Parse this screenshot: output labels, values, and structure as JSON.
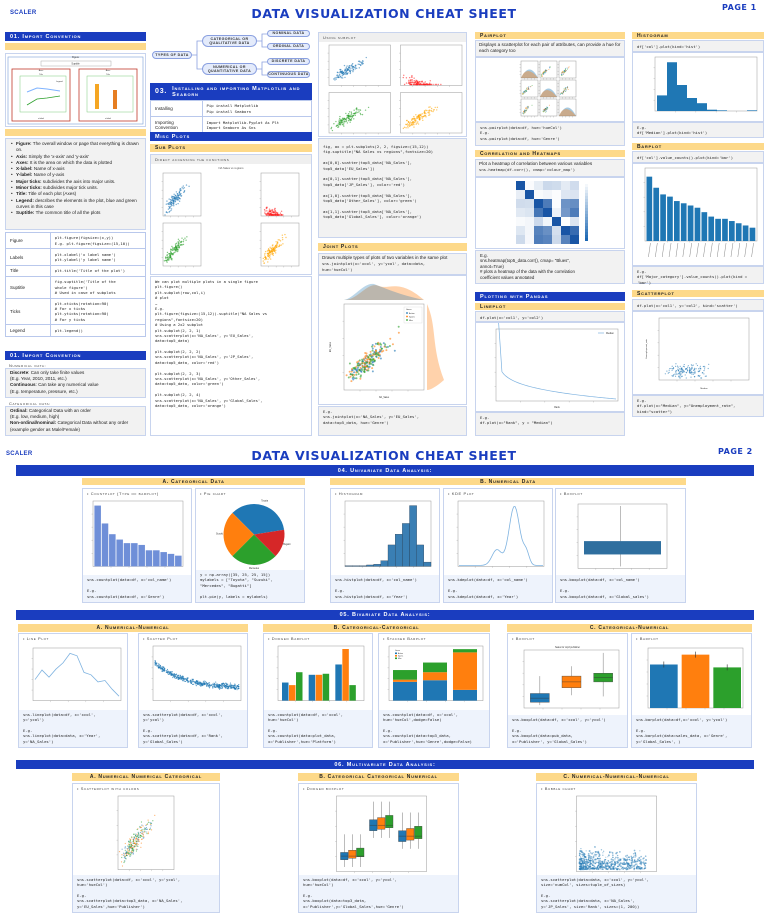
{
  "colors": {
    "brand_blue": "#1a3dbf",
    "section_yellow": "#fdd98a",
    "c_blue": "#1f77b4",
    "c_orange": "#ff7f0e",
    "c_green": "#2ca02c",
    "c_red": "#d62728"
  },
  "page1": {
    "logo": "SCALER",
    "title": "DATA VISUALIZATION CHEAT SHEET",
    "page": "PAGE 1",
    "import_heading": "01. Import Convention",
    "anatomy": {
      "figure": "Figure",
      "suptitle": "Suptitle",
      "axes": "Axes",
      "title": "Title",
      "legend": "Legend",
      "xlabel": "x-label",
      "ylabel": "y-label"
    },
    "bullets": [
      {
        "k": "Figure:",
        "v": " The overall window or page that everything is drawn on."
      },
      {
        "k": "Axis:",
        "v": " Simply the 'x-axis' and 'y-axis'"
      },
      {
        "k": "Axes:",
        "v": " It is the area on which the data is plotted"
      },
      {
        "k": "X-label:",
        "v": " Name of x-axis"
      },
      {
        "k": "Y-label:",
        "v": " Name of y-axis"
      },
      {
        "k": "Major ticks:",
        "v": " subdivides the axis into major units."
      },
      {
        "k": "Minor ticks:",
        "v": " subdivides major tick units."
      },
      {
        "k": "Title:",
        "v": " Title of each plot (Axes)"
      },
      {
        "k": "Legend:",
        "v": " describes the elements in the plot, blue and green curves in this case"
      },
      {
        "k": "Suptitle:",
        "v": " The common title of all the plots"
      }
    ],
    "table": [
      {
        "label": "Figure",
        "code": [
          "plt.figure(figsize=(x,y))",
          "E.g. plt.figure(figsize=(15,10))"
        ]
      },
      {
        "label": "Labels",
        "code": [
          "plt.xlabel('x label name')",
          "plt.ylabel('y label name')"
        ]
      },
      {
        "label": "Title",
        "code": [
          "plt.title('Title of the plot')"
        ]
      },
      {
        "label": "Suptitle",
        "code": [
          "fig.suptitle('Title of the",
          "whole figure')",
          "# Used in case of subplots"
        ]
      },
      {
        "label": "Ticks",
        "code": [
          "plt.xticks(rotation=90)",
          "# For x ticks",
          "plt.yticks(rotation=90)",
          "# For y ticks"
        ]
      },
      {
        "label": "Legend",
        "code": [
          "plt.legend()"
        ]
      }
    ],
    "data_heading": "01. Import Convention",
    "numerical_label": "Numerical data:",
    "numerical": [
      {
        "k": "Discrete",
        "v": ": Can only take finite values"
      },
      {
        "k": "",
        "v": "(E.g. Year, 2010, 2011, etc.)"
      },
      {
        "k": "Continuous",
        "v": ": Can take any numerical value"
      },
      {
        "k": "",
        "v": "(E.g. temperature, pressure, etc.)"
      }
    ],
    "categorical_label": "Categorical data:",
    "categorical": [
      {
        "k": "Ordinal:",
        "v": " Categorical Data with an order"
      },
      {
        "k": "",
        "v": "(E.g. low, medium, high)"
      },
      {
        "k": "Non-ordinal/nominal:",
        "v": " Categorical Data without any order (example gender as Male/Female)"
      }
    ],
    "types": {
      "root": "Types of Data",
      "cat": "Categorical or Qualitative Data",
      "num": "Numerical or Quantitative Data",
      "nominal": "Nominal Data",
      "ordinal": "Ordinal Data",
      "discrete": "Discrete Data",
      "continuous": "Continuous Data"
    },
    "install": {
      "heading_num": "03.",
      "heading": "Installing and importing Matplotlib and Seaborn",
      "rows": [
        {
          "label": "Installing",
          "code": [
            "Pip install Matplotlib",
            "Pip install Seaborn"
          ]
        },
        {
          "label": "Importing Convention",
          "code": [
            "Import Matplotlib.Pyplot As Plt",
            "Import Seaborn As Sns"
          ]
        }
      ]
    },
    "misc_heading": "Misc Plots",
    "subplots_heading": "Sub Plots",
    "direct_label": "Direct accessing the functions",
    "direct_plot_title": "NA Sales vs regions",
    "direct_code": [
      "We can plot multiple plots in a single figure",
      "plt.figure()",
      "plt.subplot(row,col,i)",
      "# plot",
      "…",
      "E.g.",
      "plt.figure(figsize=(15,12)).suptitle(\"NA Sales vs",
      "regions\",fontsize=20)",
      "# Using a 2x2 subplot",
      "plt.subplot(2, 2, 1)",
      "sns.scatterplot(x='NA_Sales', y='EU_Sales',",
      "data=top5_data)",
      "",
      "plt.subplot(2, 2, 2)",
      "sns.scatterplot(x='NA_Sales', y='JP_Sales',",
      "data=top5_data, color='red')",
      "",
      "plt.subplot(2, 2, 3)",
      "sns.scatterplot(x='NA_Sales', y='Other_Sales',",
      "data=top5_data, color='green')",
      "",
      "plt.subplot(2, 2, 4)",
      "sns.scatterplot(x='NA_Sales', y='Global_Sales',",
      "data=top5_data, color='orange')"
    ],
    "axes_label": "Using subplot",
    "axes_code": [
      "fig, ax = plt.subplots(2, 2, figsize=(15,12))",
      "fig.suptitle(\"NA Sales vs regions\",fontsize=20)",
      "",
      "ax[0,0].scatter(top5_data['NA_Sales'],",
      "top5_data['EU_Sales'])",
      "",
      "ax[0,1].scatter(top5_data['NA_Sales'],",
      "top5_data['JP_Sales'], color='red')",
      "",
      "ax[1,0].scatter(top5_data['NA_Sales'],",
      "top5_data['Other_Sales'], color='green')",
      "",
      "ax[1,1].scatter(top5_data['NA_Sales'],",
      "top5_data['Global_Sales'], color='orange')"
    ],
    "joint": {
      "heading": "Joint Plots",
      "desc": "Draws multiple types of plots of two variables in the same plot",
      "code": [
        "sns.jointplot(x='xcol', y='ycol', data=data,",
        "hue='hueCol')"
      ],
      "legend_title": "Genre",
      "legend": [
        "Action",
        "Sports",
        "Misc"
      ],
      "xlabel": "NA_Sales",
      "ylabel": "EU_Sales",
      "eg": [
        "E.g.",
        "sns.jointplot(x='NA_Sales', y='EU_Sales',",
        "data=top5_data, hue='Genre')"
      ]
    },
    "pairplot": {
      "heading": "Pairplot",
      "desc": "Displays a scatterplot for each pair of attributes, can provide a hue for each category too",
      "code": [
        "sns.pairplot(data=df, hue='hueCol')",
        "E.g.",
        "sns.pairplot(data=df, hue='Genre')"
      ]
    },
    "heatmap": {
      "heading": "Correlation and Heatmaps",
      "desc": "Plot a heatmap of correlation between various variables",
      "code": [
        "sns.heatmap(df.corr(), cmap='colour_map')"
      ],
      "eg": [
        "E.g.",
        "sns.heatmap(top5_data.corr(), cmap= \"Blues\",",
        "annot=True)",
        "# plots a heatmap of the data with the correlation",
        "coefficient values annotated"
      ]
    },
    "pandas_heading": "Plotting with Pandas",
    "lineplot": {
      "heading": "Lineplot",
      "code": [
        "df.plot(x='col1', y='col2')"
      ],
      "legend": "Median",
      "xlabel": "Rank",
      "eg": [
        "E.g.",
        "df.plot(x=\"Rank\", y = \"Median\")"
      ]
    },
    "histogram": {
      "heading": "Histogram",
      "code": [
        "df['col'].plot(kind='hist')"
      ],
      "eg": [
        "E.g.",
        "df['Median'].plot(kind='hist')"
      ]
    },
    "barplot": {
      "heading": "Barplot",
      "code": [
        "df['col'].value_counts().plot(kind='bar')"
      ],
      "eg": [
        "E.g.",
        "df['Major_category'].value_counts().plot(kind = 'bar')"
      ]
    },
    "scatterplot": {
      "heading": "Scatterplot",
      "code": [
        "df.plot(x='col1', y='col2', kind='scatter')"
      ],
      "xlabel": "Median",
      "ylabel": "Unemployment_rate",
      "eg": [
        "E.g.",
        "df.plot(x=\"Median\", y=\"Unemployment_rate\",",
        "kind=\"scatter\")"
      ]
    }
  },
  "page2": {
    "logo": "SCALER",
    "title": "DATA VISUALIZATION CHEAT SHEET",
    "page": "PAGE 2",
    "univariate": {
      "heading": "04. Univariate Data Analysis:",
      "a": "A. Categorical Data",
      "b": "B. Numerical Data",
      "countplot": {
        "label": "Countplot (Type of barplot)",
        "code": [
          "sns.countplot(data=df, x='col_name')",
          "",
          "E.g.",
          "sns.countplot(data=df, x='Genre')"
        ]
      },
      "pie": {
        "label": "Pie chart",
        "slices": [
          "Toyota",
          "Suzuki",
          "Mercedes",
          "Bugatti"
        ],
        "values": [
          35,
          25,
          25,
          15
        ],
        "code": [
          "y = np.array([35, 25, 25, 15])",
          "mylabels = [\"Toyota\", \"Suzuki\",",
          "\"Mercedes\", \"Bugatti\"]",
          "",
          "plt.pie(y, labels = mylabels)"
        ]
      },
      "histogram": {
        "label": "Histogram",
        "code": [
          "sns.histplot(data=df, x='col_name')",
          "",
          "E.g.",
          "sns.histplot(data=df, x='Year')"
        ]
      },
      "kde": {
        "label": "KDE Plot",
        "code": [
          "sns.kdeplot(data=df, x='col_name')",
          "",
          "E.g.",
          "sns.kdeplot(data=df, x='Year')"
        ]
      },
      "boxplot": {
        "label": "Boxplot",
        "code": [
          "sns.boxplot(data=df, x='col_name')",
          "",
          "E.g.",
          "sns.boxplot(data=df, x='Global_sales')"
        ]
      }
    },
    "bivariate": {
      "heading": "05. Bivariate Data Analysis:",
      "a": "A. Numerical-Numerical",
      "b": "B. Categorical-Categorical",
      "c": "C. Categorical-Numerical",
      "line": {
        "label": "Line Plot",
        "code": [
          "sns.lineplot(data=df, x='xcol',",
          "y='ycol')",
          "",
          "E.g.",
          "sns.lineplot(data=data, x='Year',",
          "y='NA_Sales')"
        ]
      },
      "scatter": {
        "label": "Scatter Plot",
        "code": [
          "sns.scatterplot(data=df, x='xcol',",
          "y='ycol')",
          "",
          "E.g.",
          "sns.scatterplot(data=df, x='Rank',",
          "y='Global_Sales')"
        ]
      },
      "dodged": {
        "label": "Dodged Barplot",
        "code": [
          "sns.countplot(data=df, x='xcol',",
          "hue='hueCol')",
          "",
          "E.g.",
          "sns.countplot(data=plot_data,",
          "x='Publisher',hue='Platform')"
        ]
      },
      "stacked": {
        "label": "Stacked Barplot",
        "legend_title": "Genre",
        "legend": [
          "Action",
          "Sports",
          "Misc"
        ],
        "code": [
          "sns.countplot(data=df, x='xcol',",
          "hue='hueCol',dodge=False)",
          "",
          "E.g.",
          "sns.countplot(data=top3_data,",
          "x='Publisher',hue='Genre',dodge=False)"
        ]
      },
      "boxplot": {
        "label": "Boxplot",
        "title": "Sales for top3 publisher",
        "code": [
          "sns.boxplot(data=df, x='xcol', y='ycol')",
          "",
          "E.g.",
          "sns.boxplot(data=pub_data,",
          "x='Publisher', y='Global_Sales')"
        ]
      },
      "barplot": {
        "label": "Barplot",
        "code": [
          "sns.barplot(data=df,x='xcol', y='ycol')",
          "",
          "E.g.",
          "sns.barplot(data=sales_data, x='Genre',",
          "y='Global_Sales', )"
        ]
      }
    },
    "multivariate": {
      "heading": "06. Multivariate Data Analysis:",
      "a": "A. Numerical Numerical Categorical",
      "b": "B. Categorical Categorical Numerical",
      "c": "C. Numerical-Numerical-Numerical",
      "scatter": {
        "label": "Scatterplot with colors",
        "code": [
          "sns.scatterplot(data=df, x='xcol', y='ycol',",
          "hue='hueCol')",
          "",
          "E.g.",
          "sns.scatterplot(data=top3_data, x='NA_Sales',",
          "y='EU_Sales',hue='Publisher')"
        ]
      },
      "box": {
        "label": "Dodged boxplot",
        "code": [
          "sns.boxplot(data=df, x='xcol', y='ycol',",
          "hue='hueCol')",
          "",
          "E.g.",
          "sns.boxplot(data=top3_data,",
          "x='Publisher',y='Global_Sales',hue='Genre')"
        ]
      },
      "bubble": {
        "label": "Bubble chart",
        "code": [
          "sns.scatterplot(data=data, x='xcol', y='ycol',",
          "size='numCol', sizes=tuple_of_sizes)",
          "",
          "E.g.",
          "sns.scatterplot(data=data, x='NA_Sales',",
          "y='JP_Sales', size='Rank', sizes=(1, 200))"
        ]
      }
    }
  }
}
